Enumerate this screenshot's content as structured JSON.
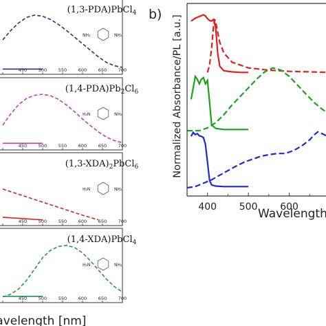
{
  "chart_data": [
    {
      "panel": "a",
      "type": "line",
      "xlabel": "Wavelength [nm]",
      "xlim": [
        400,
        700
      ],
      "xticks": [
        "400",
        "450",
        "500",
        "550",
        "600",
        "650",
        "700"
      ],
      "subplots": [
        {
          "formula_parts": [
            "(1,3-PDA)PbCl",
            "4",
            ""
          ],
          "molecule_labels": [
            "NH₂",
            "NH₂"
          ],
          "series": [
            {
              "color": "#2b2b8c",
              "style": "dashed",
              "x": [
                400,
                420,
                440,
                460,
                480,
                500,
                520,
                540,
                560,
                580,
                600,
                620,
                640,
                660,
                680,
                700
              ],
              "y": [
                0.55,
                0.72,
                0.86,
                0.96,
                1.0,
                0.98,
                0.92,
                0.83,
                0.72,
                0.6,
                0.48,
                0.36,
                0.24,
                0.14,
                0.08,
                0.05
              ]
            },
            {
              "color": "#2b2b8c",
              "style": "solid",
              "x": [
                400,
                420,
                440,
                460,
                480,
                500
              ],
              "y": [
                0.02,
                0.02,
                0.02,
                0.02,
                0.02,
                0.02
              ]
            }
          ]
        },
        {
          "formula_parts": [
            "(1,4-PDA)Pb",
            "2",
            "Cl",
            "6",
            ""
          ],
          "molecule_labels": [
            "H₂N",
            "NH₂"
          ],
          "series": [
            {
              "color": "#c23bb0",
              "style": "dashed",
              "x": [
                400,
                420,
                440,
                460,
                480,
                500,
                520,
                540,
                560,
                580,
                600,
                620,
                640,
                660,
                680,
                700
              ],
              "y": [
                0.4,
                0.62,
                0.8,
                0.92,
                0.98,
                1.0,
                0.97,
                0.9,
                0.79,
                0.66,
                0.52,
                0.39,
                0.27,
                0.17,
                0.1,
                0.06
              ]
            },
            {
              "color": "#c23bb0",
              "style": "solid",
              "x": [
                400,
                420,
                440,
                460,
                480,
                500
              ],
              "y": [
                0.05,
                0.05,
                0.05,
                0.05,
                0.05,
                0.05
              ]
            }
          ]
        },
        {
          "formula_parts": [
            "(1,3-XDA)",
            "2",
            "PbCl",
            "6",
            ""
          ],
          "molecule_labels": [
            "H₂N",
            "NH₂"
          ],
          "series": [
            {
              "color": "#e01f1f",
              "style": "dashed",
              "x": [
                400,
                440,
                480,
                520,
                560,
                600,
                640
              ],
              "y": [
                0.62,
                0.52,
                0.42,
                0.32,
                0.22,
                0.12,
                0.03
              ]
            },
            {
              "color": "#e01f1f",
              "style": "solid",
              "x": [
                400,
                420,
                440,
                460,
                480,
                500
              ],
              "y": [
                0.08,
                0.07,
                0.06,
                0.05,
                0.04,
                0.03
              ]
            }
          ]
        },
        {
          "formula_parts": [
            "(1,4-XDA)PbCl",
            "4",
            ""
          ],
          "molecule_labels": [
            "H₂N",
            "NH₂"
          ],
          "series": [
            {
              "color": "#1f9a4a",
              "style": "dashed",
              "x": [
                400,
                420,
                440,
                460,
                480,
                500,
                520,
                540,
                560,
                580,
                600,
                620,
                640,
                660,
                680,
                700
              ],
              "y": [
                0.03,
                0.08,
                0.18,
                0.34,
                0.55,
                0.76,
                0.9,
                0.97,
                0.99,
                0.95,
                0.85,
                0.7,
                0.53,
                0.36,
                0.22,
                0.12
              ]
            },
            {
              "color": "#1f9a4a",
              "style": "solid",
              "x": [
                400,
                420,
                440,
                460,
                480,
                500
              ],
              "y": [
                0.04,
                0.04,
                0.04,
                0.04,
                0.04,
                0.04
              ]
            }
          ]
        }
      ]
    },
    {
      "panel": "b",
      "panel_label": "b)",
      "type": "line",
      "xlabel": "Wavelength",
      "ylabel": "Normalized Absorbance/PL [a.u.]",
      "xlim": [
        350,
        700
      ],
      "xticks": [
        "400",
        "500",
        "600"
      ],
      "series": [
        {
          "color": "#e01f1f",
          "style": "solid",
          "x": [
            360,
            370,
            380,
            390,
            395,
            400,
            405,
            410,
            415,
            420,
            425,
            430,
            440,
            460,
            480,
            500
          ],
          "y": [
            3.92,
            3.97,
            4.0,
            4.03,
            4.01,
            3.96,
            3.93,
            3.92,
            3.95,
            3.8,
            3.35,
            3.13,
            3.05,
            3.03,
            3.02,
            3.02
          ]
        },
        {
          "color": "#e01f1f",
          "style": "dashed",
          "x": [
            400,
            405,
            410,
            415,
            418,
            420,
            425,
            430,
            440,
            460,
            500,
            550,
            600,
            650,
            700
          ],
          "y": [
            3.02,
            3.15,
            3.45,
            3.85,
            3.95,
            3.9,
            3.72,
            3.55,
            3.36,
            3.2,
            3.1,
            3.06,
            3.04,
            3.03,
            3.02
          ]
        },
        {
          "color": "#1aa31a",
          "style": "solid",
          "x": [
            360,
            370,
            375,
            380,
            385,
            390,
            395,
            400,
            405,
            410,
            420,
            440,
            460,
            480,
            500
          ],
          "y": [
            2.55,
            2.95,
            2.9,
            2.82,
            2.9,
            2.93,
            2.82,
            2.88,
            2.5,
            2.1,
            2.04,
            2.02,
            2.02,
            2.02,
            2.02
          ]
        },
        {
          "color": "#1aa31a",
          "style": "dashed",
          "x": [
            350,
            380,
            400,
            420,
            440,
            460,
            480,
            500,
            520,
            540,
            560,
            580,
            600,
            620,
            640,
            660,
            680,
            700
          ],
          "y": [
            2.0,
            2.0,
            2.05,
            2.14,
            2.28,
            2.45,
            2.6,
            2.75,
            2.9,
            3.03,
            3.1,
            3.06,
            2.95,
            2.8,
            2.65,
            2.5,
            2.38,
            2.28
          ]
        },
        {
          "color": "#1a2ad6",
          "style": "solid",
          "x": [
            360,
            365,
            370,
            375,
            380,
            385,
            390,
            395,
            400,
            405,
            410,
            420,
            440,
            460,
            480,
            500
          ],
          "y": [
            1.9,
            1.97,
            1.93,
            1.95,
            1.91,
            1.9,
            1.88,
            1.76,
            1.45,
            1.13,
            1.05,
            1.03,
            1.02,
            1.02,
            1.02,
            1.02
          ]
        },
        {
          "color": "#1a2ad6",
          "style": "dashed",
          "x": [
            350,
            370,
            390,
            410,
            430,
            450,
            470,
            490,
            510,
            530,
            550,
            570,
            590,
            610,
            630,
            650,
            660,
            670,
            680,
            700
          ],
          "y": [
            1.0,
            1.02,
            1.08,
            1.14,
            1.22,
            1.3,
            1.38,
            1.45,
            1.5,
            1.55,
            1.58,
            1.6,
            1.6,
            1.65,
            1.73,
            1.84,
            1.92,
            1.98,
            1.95,
            1.88
          ]
        }
      ]
    }
  ]
}
